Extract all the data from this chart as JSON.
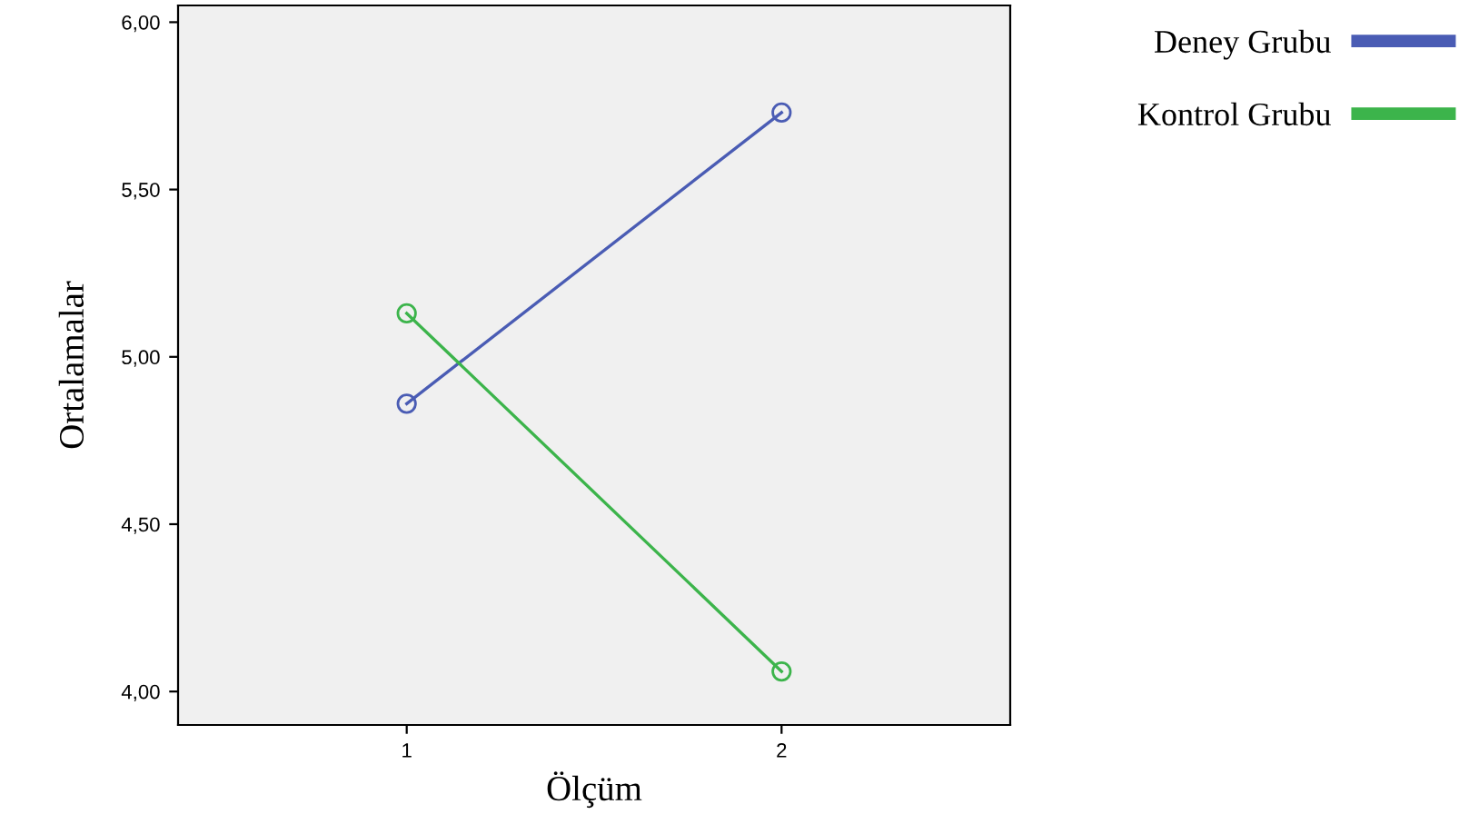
{
  "chart_data": {
    "type": "line",
    "xlabel": "Ölçüm",
    "ylabel": "Ortalamalar",
    "categories": [
      "1",
      "2"
    ],
    "series": [
      {
        "name": "Deney Grubu",
        "color": "#4a5cb4",
        "values": [
          4.86,
          5.73
        ]
      },
      {
        "name": "Kontrol Grubu",
        "color": "#3cb44b",
        "values": [
          5.13,
          4.06
        ]
      }
    ],
    "ylim": [
      3.9,
      6.05
    ],
    "yticks": [
      {
        "value": 4.0,
        "label": "4,00"
      },
      {
        "value": 4.5,
        "label": "4,50"
      },
      {
        "value": 5.0,
        "label": "5,00"
      },
      {
        "value": 5.5,
        "label": "5,50"
      },
      {
        "value": 6.0,
        "label": "6,00"
      }
    ],
    "marker": "circle",
    "legend": "top right",
    "grid": false
  }
}
